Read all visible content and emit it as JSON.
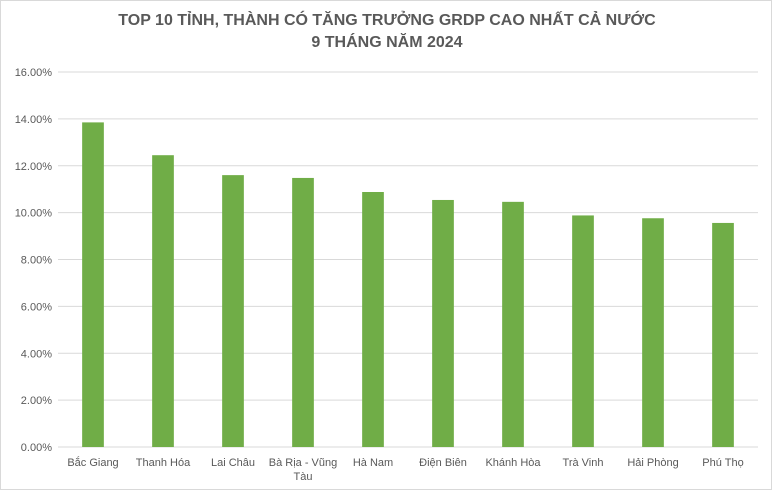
{
  "chart_data": {
    "type": "bar",
    "title": "TOP 10 TỈNH, THÀNH CÓ TĂNG TRƯỞNG GRDP CAO NHẤT CẢ NƯỚC",
    "subtitle": "9 THÁNG NĂM 2024",
    "categories": [
      "Bắc Giang",
      "Thanh Hóa",
      "Lai Châu",
      "Bà Rịa - Vũng Tàu",
      "Hà Nam",
      "Điện Biên",
      "Khánh Hòa",
      "Trà Vinh",
      "Hải Phòng",
      "Phú Thọ"
    ],
    "values": [
      13.85,
      12.45,
      11.6,
      11.48,
      10.88,
      10.54,
      10.46,
      9.88,
      9.76,
      9.56
    ],
    "ylim": [
      0,
      16
    ],
    "y_ticks": [
      "0.00%",
      "2.00%",
      "4.00%",
      "6.00%",
      "8.00%",
      "10.00%",
      "12.00%",
      "14.00%",
      "16.00%"
    ],
    "xlabel": "",
    "ylabel": "",
    "grid": true,
    "legend": "none",
    "bar_color": "#70AD47",
    "gridline_color": "#D9D9D9"
  }
}
